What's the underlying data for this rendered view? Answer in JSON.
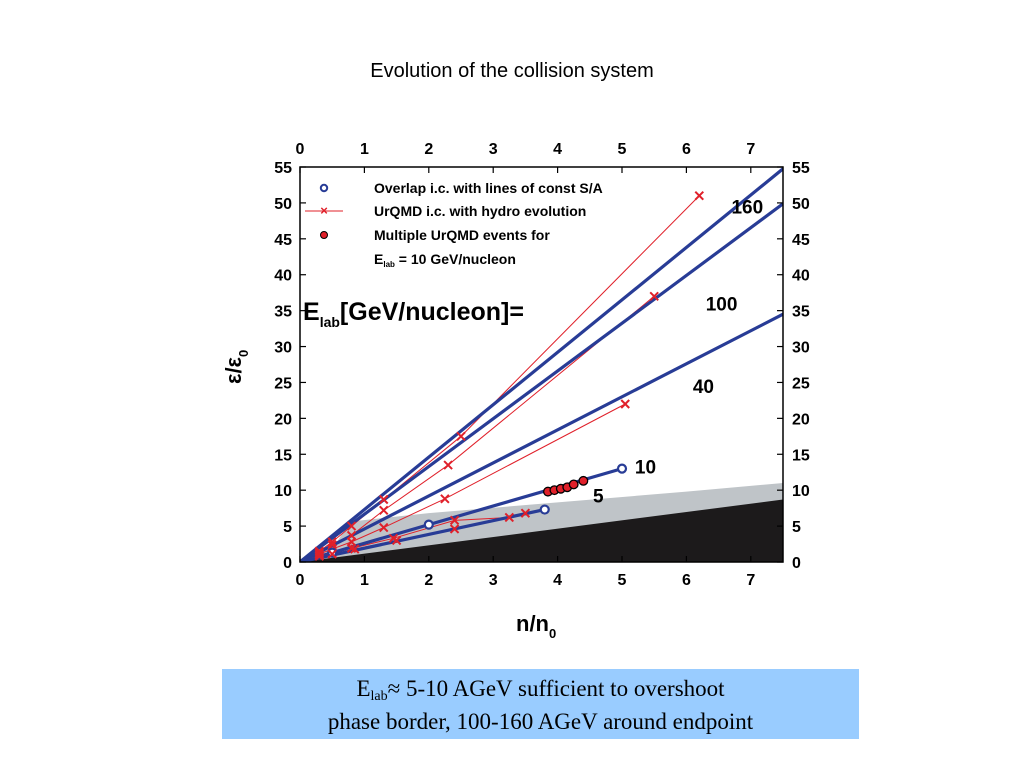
{
  "slide": {
    "title": "Evolution of the collision system",
    "caption": {
      "line1_prefix": "E",
      "line1_sub": "lab",
      "line1_rest": "≈  5-10 AGeV sufficient to overshoot",
      "line2": "phase border, 100-160 AGeV around endpoint"
    }
  },
  "chart_data": {
    "type": "line",
    "xlabel": "n/n",
    "xlabel_sub": "0",
    "ylabel": "ε/ε",
    "ylabel_sub": "0",
    "xlim": [
      0,
      7.5
    ],
    "ylim": [
      0,
      55
    ],
    "xticks": [
      0,
      1,
      2,
      3,
      4,
      5,
      6,
      7
    ],
    "yticks": [
      0,
      5,
      10,
      15,
      20,
      25,
      30,
      35,
      40,
      45,
      50,
      55
    ],
    "grid": false,
    "legend_position": "top-left",
    "legend": [
      {
        "marker": "open-circle",
        "label": "Overlap i.c. with lines of const S/A"
      },
      {
        "marker": "cross-line",
        "label": "UrQMD i.c. with hydro evolution"
      },
      {
        "marker": "filled-circle",
        "label": "Multiple UrQMD events for"
      },
      {
        "marker": "none",
        "label_prefix": "E",
        "label_sub": "lab",
        "label_rest": " = 10 GeV/nucleon"
      }
    ],
    "energy_heading_prefix": "E",
    "energy_heading_sub": "lab",
    "energy_heading_rest": "[GeV/nucleon]=",
    "colors": {
      "blue_line": "#283c96",
      "red": "#e0202a",
      "phase_dark": "#1c1a1b",
      "phase_light": "#bfc4c8"
    },
    "phase_regions": {
      "dark_upper_boundary": [
        [
          0,
          0
        ],
        [
          7.5,
          8.7
        ]
      ],
      "light_upper_boundary": [
        [
          0,
          0
        ],
        [
          0.55,
          2.5
        ],
        [
          0.7,
          4.5
        ],
        [
          0.85,
          5.7
        ],
        [
          2.0,
          6.8
        ],
        [
          4.0,
          8.3
        ],
        [
          6.0,
          9.8
        ],
        [
          7.5,
          11.0
        ]
      ]
    },
    "series": [
      {
        "name": "160",
        "slope": 7.3,
        "endpoint": [
          5.0,
          36.5
        ],
        "label_at": [
          6.7,
          48.5
        ],
        "hydro": [
          [
            0.3,
            1.5
          ],
          [
            0.5,
            2.8
          ],
          [
            0.8,
            5.0
          ],
          [
            1.3,
            8.7
          ],
          [
            2.5,
            17.5
          ],
          [
            6.2,
            51.0
          ]
        ]
      },
      {
        "name": "100",
        "slope": 6.65,
        "endpoint": [
          5.0,
          33.2
        ],
        "label_at": [
          6.3,
          35.0
        ],
        "hydro": [
          [
            0.3,
            1.3
          ],
          [
            0.5,
            2.4
          ],
          [
            0.8,
            3.7
          ],
          [
            1.3,
            7.2
          ],
          [
            2.3,
            13.5
          ],
          [
            5.5,
            37.0
          ]
        ]
      },
      {
        "name": "40",
        "slope": 4.6,
        "endpoint": [
          5.0,
          23.0
        ],
        "label_at": [
          6.1,
          23.5
        ],
        "hydro": [
          [
            0.3,
            1.1
          ],
          [
            0.5,
            1.8
          ],
          [
            0.8,
            2.8
          ],
          [
            1.3,
            4.8
          ],
          [
            2.25,
            8.8
          ],
          [
            5.05,
            22.0
          ]
        ]
      },
      {
        "name": "10",
        "slope": 2.6,
        "endpoint": [
          5.0,
          13.0
        ],
        "label_at": [
          5.2,
          12.3
        ],
        "hydro": [
          [
            0.3,
            0.9
          ],
          [
            0.5,
            1.3
          ],
          [
            0.8,
            1.9
          ],
          [
            1.45,
            3.3
          ],
          [
            2.4,
            5.8
          ],
          [
            3.25,
            6.2
          ]
        ],
        "overlap": [
          [
            0.5,
            1.3
          ],
          [
            2.0,
            5.2
          ],
          [
            5.0,
            13.0
          ]
        ],
        "multiple_events": [
          [
            3.85,
            9.8
          ],
          [
            3.95,
            10.0
          ],
          [
            4.05,
            10.2
          ],
          [
            4.15,
            10.4
          ],
          [
            4.25,
            10.8
          ],
          [
            4.4,
            11.3
          ]
        ]
      },
      {
        "name": "5",
        "slope": 1.9,
        "endpoint": [
          3.8,
          7.3
        ],
        "label_at": [
          4.55,
          8.3
        ],
        "hydro": [
          [
            0.3,
            0.8
          ],
          [
            0.5,
            1.1
          ],
          [
            0.85,
            1.8
          ],
          [
            1.5,
            3.0
          ],
          [
            2.4,
            4.6
          ],
          [
            3.5,
            6.8
          ]
        ],
        "overlap": [
          [
            3.8,
            7.3
          ]
        ]
      }
    ]
  }
}
